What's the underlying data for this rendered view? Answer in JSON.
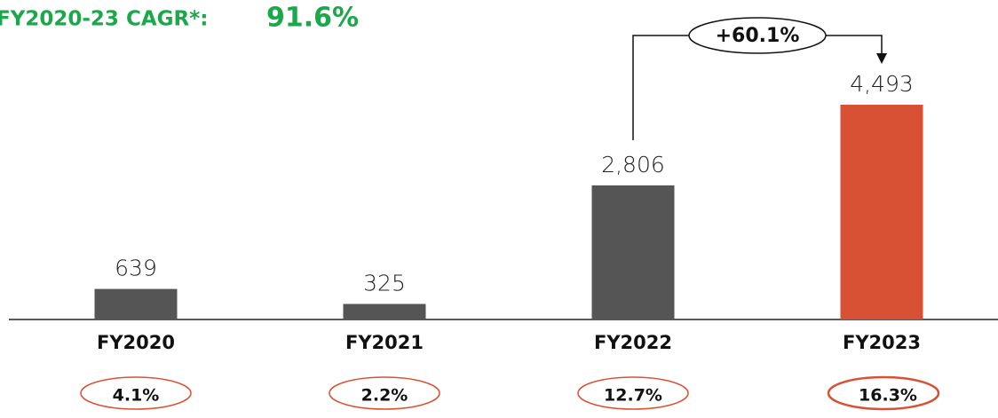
{
  "chart_data": {
    "type": "bar",
    "title": "FY2020-23 CAGR*:",
    "title_value": "91.6%",
    "categories": [
      "FY2020",
      "FY2021",
      "FY2022",
      "FY2023"
    ],
    "values": [
      639,
      325,
      2806,
      4493
    ],
    "value_labels": [
      "639",
      "325",
      "2,806",
      "4,493"
    ],
    "colors": [
      "#555555",
      "#555555",
      "#555555",
      "#d95135"
    ],
    "growth_annotation": "+60.1%",
    "margin_labels": [
      "4.1%",
      "2.2%",
      "12.7%",
      "16.3%"
    ]
  }
}
